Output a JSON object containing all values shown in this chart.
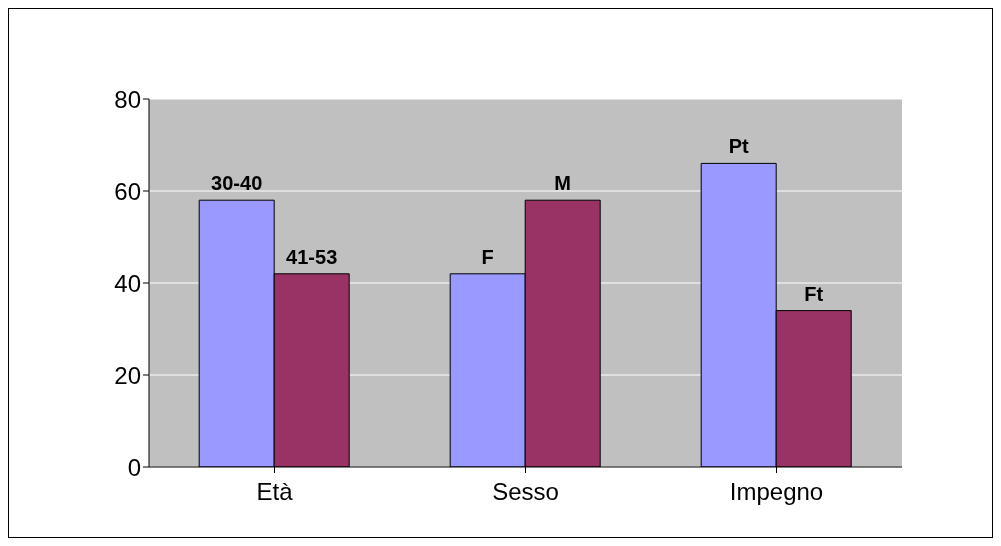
{
  "chart_data": {
    "type": "bar",
    "categories": [
      "Età",
      "Sesso",
      "Impegno"
    ],
    "series": [
      {
        "color": "#9999ff",
        "values": [
          58,
          42,
          66
        ],
        "value_labels": [
          "30-40",
          "F",
          "Pt"
        ]
      },
      {
        "color": "#993366",
        "values": [
          42,
          58,
          34
        ],
        "value_labels": [
          "41-53",
          "M",
          "Ft"
        ]
      }
    ],
    "ylim": [
      0,
      80
    ],
    "yticks": [
      0,
      20,
      40,
      60,
      80
    ],
    "grid": "y",
    "legend": false
  }
}
